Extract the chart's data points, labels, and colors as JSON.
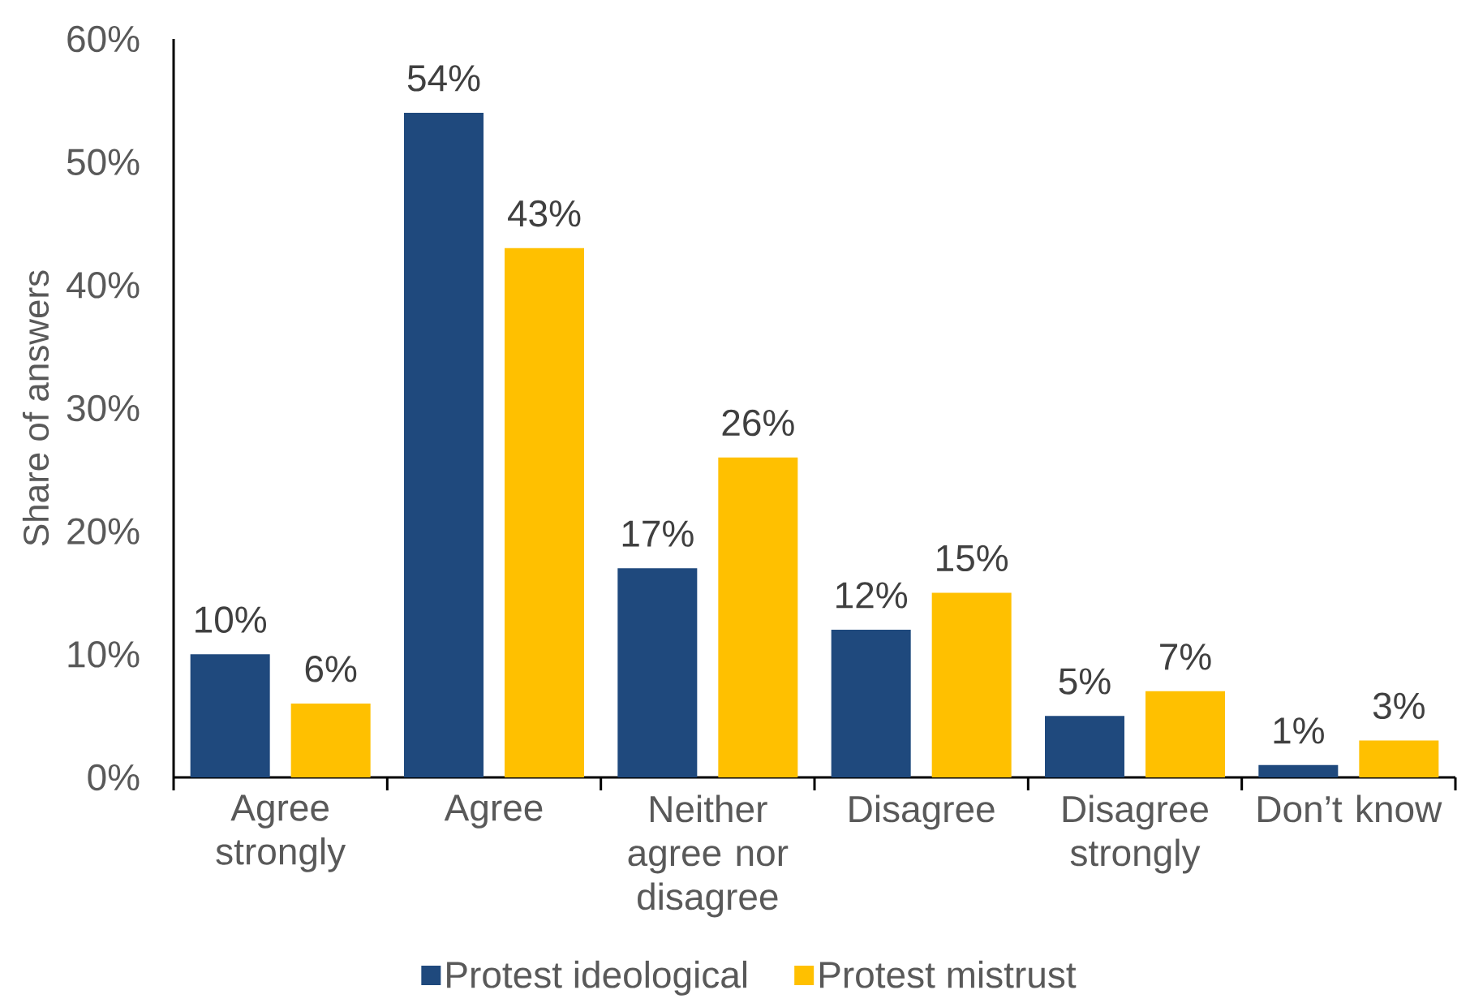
{
  "chart_data": {
    "type": "bar",
    "ylabel": "Share of answers",
    "categories": [
      "Agree strongly",
      "Agree",
      "Neither agree nor disagree",
      "Disagree",
      "Disagree strongly",
      "Don’t know"
    ],
    "series": [
      {
        "name": "Protest ideological",
        "color": "#1f497d",
        "values": [
          10,
          54,
          17,
          12,
          5,
          1
        ],
        "value_labels": [
          "10%",
          "54%",
          "17%",
          "12%",
          "5%",
          "1%"
        ]
      },
      {
        "name": "Protest mistrust",
        "color": "#ffc000",
        "values": [
          6,
          43,
          26,
          15,
          7,
          3
        ],
        "value_labels": [
          "6%",
          "43%",
          "26%",
          "15%",
          "7%",
          "3%"
        ]
      }
    ],
    "ylim": [
      0,
      60
    ],
    "yticks": [
      {
        "value": 0,
        "label": "0%"
      },
      {
        "value": 10,
        "label": "10%"
      },
      {
        "value": 20,
        "label": "20%"
      },
      {
        "value": 30,
        "label": "30%"
      },
      {
        "value": 40,
        "label": "40%"
      },
      {
        "value": 50,
        "label": "50%"
      },
      {
        "value": 60,
        "label": "60%"
      }
    ],
    "grid": false,
    "legend": "bottom"
  }
}
